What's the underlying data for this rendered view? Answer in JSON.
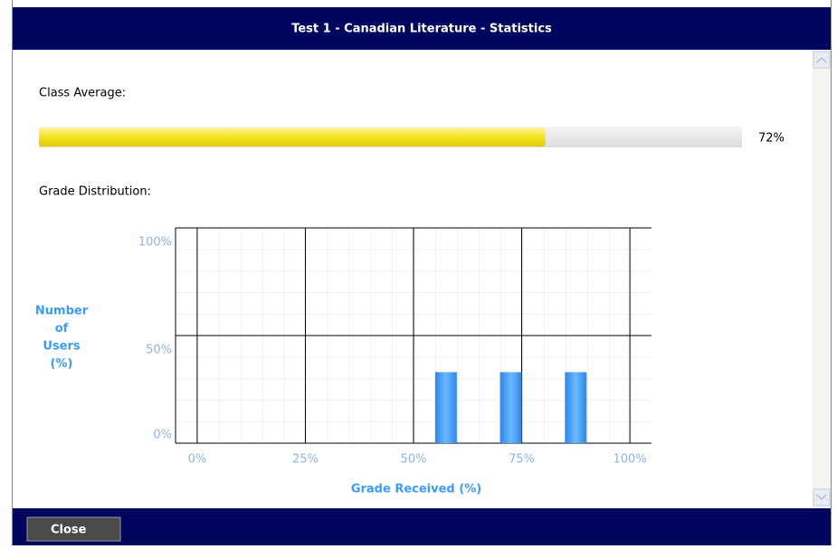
{
  "window": {
    "title": "Test 1 - Canadian Literature - Statistics",
    "close_button": "Close"
  },
  "class_average": {
    "label": "Class Average:",
    "value": 72,
    "value_label": "72%",
    "lim": [
      0,
      100
    ]
  },
  "distribution_label": "Grade Distribution:",
  "chart_data": {
    "type": "bar",
    "x": [
      57.5,
      72.5,
      87.5
    ],
    "values": [
      33,
      33,
      33
    ],
    "color": "#3d9bf5",
    "xlabel": "Grade Received (%)",
    "ylabel": [
      "Number",
      "of",
      "Users",
      "(%)"
    ],
    "xlim": [
      -5,
      105
    ],
    "ylim": [
      0,
      100
    ],
    "xticks": [
      {
        "value": 0,
        "label": "0%"
      },
      {
        "value": 25,
        "label": "25%"
      },
      {
        "value": 50,
        "label": "50%"
      },
      {
        "value": 75,
        "label": "75%"
      },
      {
        "value": 100,
        "label": "100%"
      }
    ],
    "yticks": [
      {
        "value": 0,
        "label": "0%"
      },
      {
        "value": 50,
        "label": "50%"
      },
      {
        "value": 100,
        "label": "100%"
      }
    ],
    "grid": true
  }
}
